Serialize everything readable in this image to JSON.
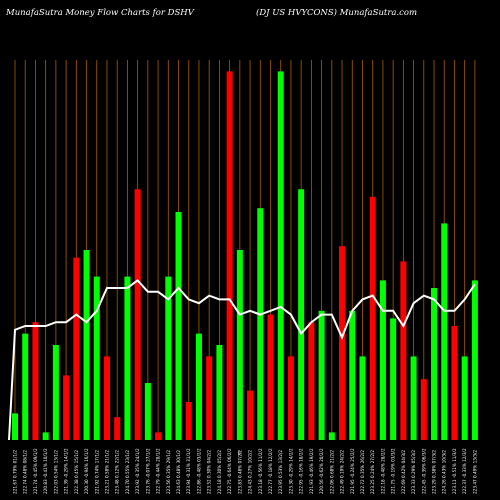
{
  "header": {
    "title_left": "MunafaSutra  Money Flow  Charts for DSHV",
    "title_right": "(DJ US HVYCONS) MunafaSutra.com"
  },
  "colors": {
    "background": "#000000",
    "gridline": "#a65e00",
    "up_bar": "#00ff00",
    "down_bar": "#ff0000",
    "price_line": "#ffffff"
  },
  "chart_data": {
    "type": "bar",
    "title": "MunafaSutra  Money Flow  Charts for DSHV",
    "subtitle": "(DJ US HVYCONS) MunafaSutra.com",
    "mid_label": "0",
    "bar_ylim": [
      0,
      100
    ],
    "line_ylim": [
      0,
      100
    ],
    "categories": [
      "221.67 0.79% 01/1/2",
      "222.74 0.48% 08/1/2",
      "221.74 -0.45% 09/1/2",
      "220.83 -0.41% 10/1/2",
      "222.03 0.54% 13/1/2",
      "221.39 -0.29% 14/1/2",
      "222.38 0.45% 15/1/2",
      "220.30 -0.94% 16/1/2",
      "221.92 0.74% 17/1/2",
      "223.21 0.58% 21/1/2",
      "223.48 0.12% 22/1/2",
      "224.70 0.55% 23/1/2",
      "223.92 -0.35% 24/1/2",
      "223.76 -0.07% 27/1/2",
      "222.79 -0.44% 28/1/2",
      "223.56 0.35% 29/1/2",
      "224.63 0.48% 30/1/2",
      "223.94 -0.31% 31/1/2",
      "222.86 -0.48% 03/2/2",
      "223.52 0.30% 04/2/2",
      "224.18 0.30% 05/2/2",
      "222.75 -0.64% 06/2/2",
      "223.83 0.48% 07/2/2",
      "224.43 0.27% 10/2/2",
      "223.18 -0.56% 11/2/2",
      "222.77 -0.18% 12/2/2",
      "223.95 0.53% 13/2/2",
      "223.30 -0.29% 14/2/2",
      "222.95 -0.16% 18/2/2",
      "221.93 -0.46% 19/2/2",
      "220.56 -0.62% 20/2/2",
      "222.06 0.68% 21/2/2",
      "222.49 0.19% 24/2/2",
      "221.95 -0.24% 25/2/2",
      "222.72 0.35% 26/2/2",
      "223.25 0.24% 27/2/2",
      "222.18 -0.48% 28/2/2",
      "221.75 -0.19% 03/3/2",
      "222.69 0.42% 04/3/2",
      "223.33 0.29% 05/3/2",
      "222.45 -0.39% 06/3/2",
      "223.29 0.38% 07/3/2",
      "224.26 0.43% 10/3/2",
      "223.11 -0.51% 11/3/2",
      "222.37 -0.33% 12/3/2",
      "223.47 0.49% 13/3/2"
    ],
    "series": [
      {
        "direction": [
          "up",
          "up",
          "down",
          "up",
          "up",
          "down",
          "down",
          "up",
          "up",
          "down",
          "down",
          "up",
          "down",
          "up",
          "down",
          "up",
          "up",
          "down",
          "up",
          "down",
          "up",
          "down",
          "up",
          "down",
          "up",
          "down",
          "up",
          "down",
          "up",
          "down",
          "up",
          "up",
          "down",
          "up",
          "up",
          "down",
          "up",
          "up",
          "down",
          "up",
          "down",
          "up",
          "up",
          "down",
          "up",
          "up"
        ],
        "values": [
          7,
          28,
          31,
          2,
          25,
          17,
          48,
          50,
          43,
          22,
          6,
          43,
          66,
          15,
          2,
          43,
          60,
          10,
          28,
          22,
          25,
          97,
          50,
          13,
          61,
          33,
          97,
          22,
          66,
          31,
          34,
          2,
          51,
          34,
          22,
          64,
          42,
          32,
          47,
          22,
          16,
          40,
          57,
          30,
          22,
          42
        ]
      },
      {
        "name": "price",
        "values": [
          29,
          30,
          30,
          30,
          31,
          31,
          33,
          31,
          34,
          40,
          40,
          40,
          42,
          39,
          39,
          37,
          40,
          37,
          36,
          38,
          37,
          37,
          33,
          34,
          33,
          34,
          35,
          33,
          28,
          31,
          33,
          33,
          27,
          34,
          37,
          38,
          34,
          34,
          30,
          36,
          38,
          37,
          34,
          34,
          37,
          41
        ]
      }
    ]
  }
}
